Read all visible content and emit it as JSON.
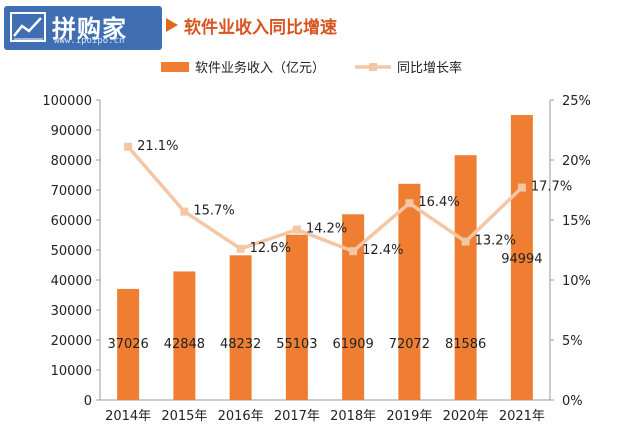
{
  "brand": {
    "name": "拼购家",
    "url": "www.ipoipo.cn"
  },
  "title": "软件业收入同比增速",
  "colors": {
    "bar": "#ef7e32",
    "line": "#f5c6a4",
    "text": "#222222",
    "title": "#d9531e",
    "logo_bg": "#3f6fb2"
  },
  "chart_data": {
    "type": "bar",
    "title": "软件业收入同比增速",
    "categories": [
      "2014年",
      "2015年",
      "2016年",
      "2017年",
      "2018年",
      "2019年",
      "2020年",
      "2021年"
    ],
    "series": [
      {
        "name": "软件业务收入（亿元）",
        "type": "bar",
        "axis": "left",
        "values": [
          37026,
          42848,
          48232,
          55103,
          61909,
          72072,
          81586,
          94994
        ]
      },
      {
        "name": "同比增长率",
        "type": "line",
        "axis": "right",
        "values": [
          21.1,
          15.7,
          12.6,
          14.2,
          12.4,
          16.4,
          13.2,
          17.7
        ],
        "labels": [
          "21.1%",
          "15.7%",
          "12.6%",
          "14.2%",
          "12.4%",
          "16.4%",
          "13.2%",
          "17.7%"
        ]
      }
    ],
    "ylim": [
      0,
      100000
    ],
    "yticks": [
      "0",
      "10000",
      "20000",
      "30000",
      "40000",
      "50000",
      "60000",
      "70000",
      "80000",
      "90000",
      "100000"
    ],
    "y2lim": [
      0,
      25
    ],
    "y2ticks": [
      "0%",
      "5%",
      "10%",
      "15%",
      "20%",
      "25%"
    ],
    "legend": "top-center",
    "grid": false
  }
}
